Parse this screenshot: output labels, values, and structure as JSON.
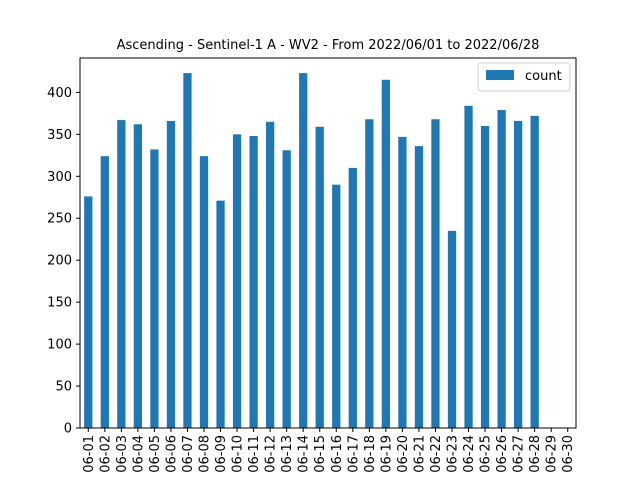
{
  "chart_data": {
    "type": "bar",
    "title": "Ascending - Sentinel-1 A - WV2 - From 2022/06/01 to 2022/06/28",
    "xlabel": "",
    "ylabel": "",
    "categories": [
      "06-01",
      "06-02",
      "06-03",
      "06-04",
      "06-05",
      "06-06",
      "06-07",
      "06-08",
      "06-09",
      "06-10",
      "06-11",
      "06-12",
      "06-13",
      "06-14",
      "06-15",
      "06-16",
      "06-17",
      "06-18",
      "06-19",
      "06-20",
      "06-21",
      "06-22",
      "06-23",
      "06-24",
      "06-25",
      "06-26",
      "06-27",
      "06-28",
      "06-29",
      "06-30"
    ],
    "series": [
      {
        "name": "count",
        "color": "#1f77b4",
        "values": [
          276,
          324,
          367,
          362,
          332,
          366,
          423,
          324,
          271,
          350,
          348,
          365,
          331,
          423,
          359,
          290,
          310,
          368,
          415,
          347,
          336,
          368,
          235,
          384,
          360,
          379,
          366,
          372,
          null,
          null
        ]
      }
    ],
    "ylim": [
      0,
      441
    ],
    "yticks": [
      0,
      50,
      100,
      150,
      200,
      250,
      300,
      350,
      400
    ],
    "grid": false,
    "legend": "top-right"
  }
}
